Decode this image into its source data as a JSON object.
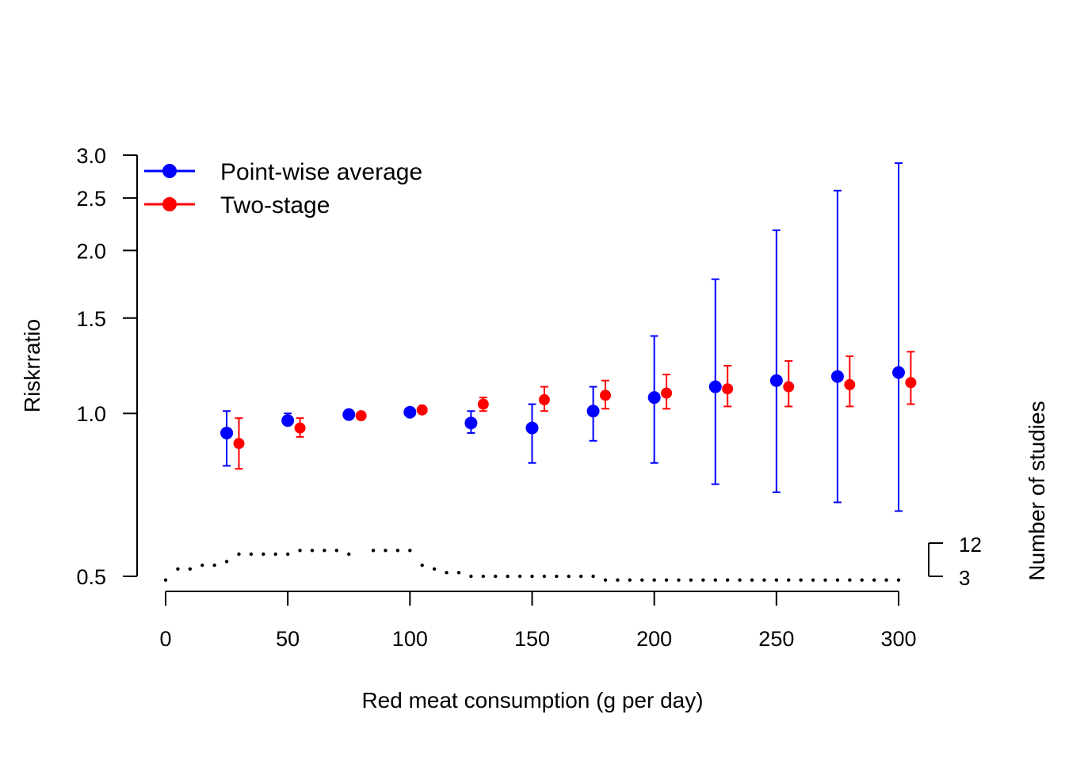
{
  "chart_data": {
    "type": "scatter",
    "title": "",
    "xlabel": "Red meat consumption (g per day)",
    "ylabel": "Riskrratio",
    "xlim": [
      0,
      300
    ],
    "ylim": [
      0.5,
      3.0
    ],
    "y_scale": "log",
    "x_ticks": [
      0,
      50,
      100,
      150,
      200,
      250,
      300
    ],
    "x_tick_labels": [
      "0",
      "50",
      "100",
      "150",
      "200",
      "250",
      "300"
    ],
    "y_ticks": [
      0.5,
      1.0,
      1.5,
      2.0,
      2.5,
      3.0
    ],
    "y_tick_labels": [
      "0.5",
      "1.0",
      "1.5",
      "2.0",
      "2.5",
      "3.0"
    ],
    "grid": false,
    "legend_position": "top-left",
    "series": [
      {
        "name": "Point-wise average",
        "color": "#0000ff",
        "x": [
          25,
          50,
          75,
          100,
          125,
          150,
          175,
          200,
          225,
          250,
          275,
          300
        ],
        "y": [
          0.92,
          0.97,
          0.995,
          1.005,
          0.96,
          0.94,
          1.01,
          1.07,
          1.12,
          1.15,
          1.17,
          1.19
        ],
        "lower": [
          0.8,
          0.955,
          0.995,
          1.005,
          0.92,
          0.81,
          0.89,
          0.81,
          0.74,
          0.715,
          0.685,
          0.66
        ],
        "upper": [
          1.01,
          1.0,
          0.995,
          1.005,
          1.01,
          1.04,
          1.12,
          1.39,
          1.77,
          2.18,
          2.58,
          2.9
        ]
      },
      {
        "name": "Two-stage",
        "color": "#ff0000",
        "x": [
          25,
          50,
          75,
          100,
          125,
          150,
          175,
          200,
          225,
          250,
          275,
          300
        ],
        "y": [
          0.88,
          0.94,
          0.99,
          1.015,
          1.04,
          1.06,
          1.08,
          1.09,
          1.11,
          1.12,
          1.13,
          1.14
        ],
        "lower": [
          0.79,
          0.905,
          0.985,
          1.005,
          1.01,
          1.01,
          1.02,
          1.02,
          1.03,
          1.03,
          1.03,
          1.04
        ],
        "upper": [
          0.98,
          0.98,
          0.995,
          1.025,
          1.07,
          1.12,
          1.15,
          1.18,
          1.225,
          1.25,
          1.275,
          1.3
        ]
      }
    ],
    "studies": {
      "label": "Number of studies",
      "tick_labels": [
        "12",
        "3"
      ],
      "tick_values": [
        12,
        3
      ],
      "x": [
        0,
        5,
        10,
        15,
        20,
        25,
        30,
        35,
        40,
        45,
        50,
        55,
        60,
        65,
        70,
        75,
        85,
        90,
        95,
        100,
        105,
        110,
        115,
        120,
        125,
        130,
        135,
        140,
        145,
        150,
        155,
        160,
        165,
        170,
        175,
        180,
        185,
        190,
        195,
        200,
        205,
        210,
        215,
        220,
        225,
        230,
        235,
        240,
        245,
        250,
        255,
        260,
        265,
        270,
        275,
        280,
        285,
        290,
        295,
        300
      ],
      "n": [
        2,
        5,
        5,
        6,
        6,
        7,
        9,
        9,
        9,
        9,
        9,
        10,
        10,
        10,
        10,
        9,
        10,
        10,
        10,
        10,
        6,
        5,
        4,
        4,
        3,
        3,
        3,
        3,
        3,
        3,
        3,
        3,
        3,
        3,
        3,
        2,
        2,
        2,
        2,
        2,
        2,
        2,
        2,
        2,
        2,
        2,
        2,
        2,
        2,
        2,
        2,
        2,
        2,
        2,
        2,
        2,
        2,
        2,
        2,
        2
      ]
    }
  }
}
